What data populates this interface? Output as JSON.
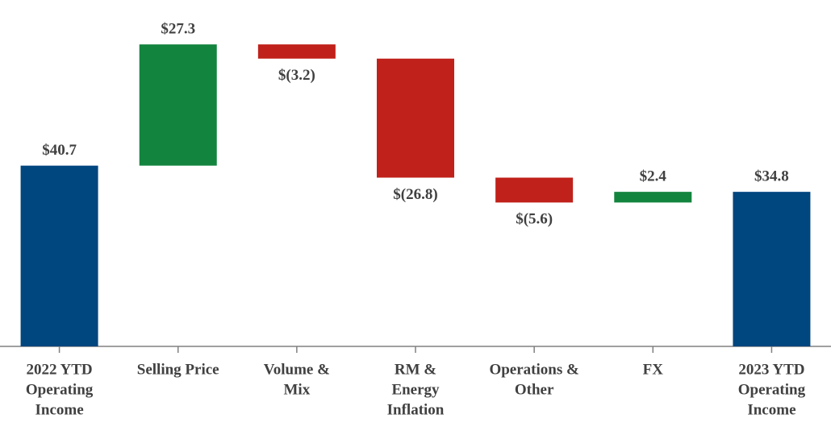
{
  "chart_data": {
    "type": "waterfall",
    "categories": [
      [
        "2022 YTD",
        "Operating",
        "Income"
      ],
      [
        "Selling Price"
      ],
      [
        "Volume &",
        "Mix"
      ],
      [
        "RM &",
        "Energy",
        "Inflation"
      ],
      [
        "Operations &",
        "Other"
      ],
      [
        "FX"
      ],
      [
        "2023 YTD",
        "Operating",
        "Income"
      ]
    ],
    "values": [
      40.7,
      27.3,
      -3.2,
      -26.8,
      -5.6,
      2.4,
      34.8
    ],
    "value_labels": [
      "$40.7",
      "$27.3",
      "$(3.2)",
      "$(26.8)",
      "$(5.6)",
      "$2.4",
      "$34.8"
    ],
    "measure": [
      "absolute",
      "relative",
      "relative",
      "relative",
      "relative",
      "relative",
      "absolute"
    ],
    "colors": {
      "total": "#00467f",
      "increase": "#13843e",
      "decrease": "#c0211a"
    },
    "ylim": [
      0,
      78
    ]
  }
}
